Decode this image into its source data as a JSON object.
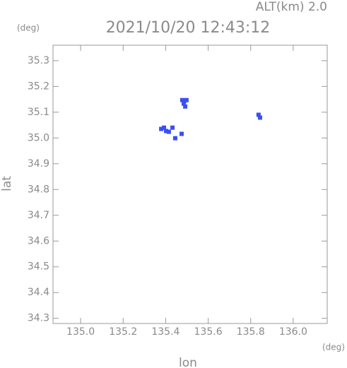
{
  "chart_data": {
    "type": "scatter",
    "title": "2021/10/20 12:43:12",
    "subtitle": "ALT(km) 2.0",
    "y_unit": "(deg)",
    "x_unit": "(deg)",
    "x_label": "lon",
    "y_label": "lat",
    "color": "#3b4ef2",
    "x": [
      135.478,
      135.488,
      135.498,
      135.485,
      135.492,
      135.837,
      135.844,
      135.379,
      135.392,
      135.402,
      135.415,
      135.432,
      135.475,
      135.445
    ],
    "values": [
      35.147,
      35.144,
      35.147,
      35.133,
      35.122,
      35.09,
      35.079,
      35.035,
      35.04,
      35.027,
      35.024,
      35.04,
      35.016,
      34.999
    ],
    "xlim": [
      134.87,
      136.16
    ],
    "ylim": [
      34.28,
      35.36
    ],
    "xticks": [
      {
        "value": 135,
        "label": "135.0"
      },
      135.2,
      135.4,
      135.6,
      135.8,
      {
        "value": 136,
        "label": "136.0"
      }
    ],
    "yticks": [
      34.3,
      34.4,
      34.5,
      34.6,
      34.7,
      34.8,
      34.9,
      {
        "value": 35,
        "label": "35.0"
      },
      35.1,
      35.2,
      35.3
    ]
  }
}
